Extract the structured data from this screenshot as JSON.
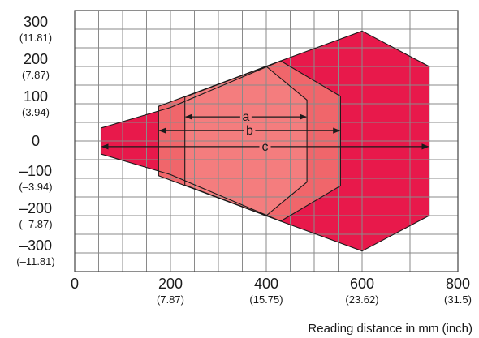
{
  "chart_data": {
    "type": "area",
    "title": "",
    "xlabel": "Reading distance in mm (inch)",
    "ylabel": "",
    "xlim": [
      0,
      800
    ],
    "ylim": [
      -350,
      350
    ],
    "grid": true,
    "colors": {
      "outer": "#e8194b",
      "middle": "#f0666b",
      "inner": "#f47d7e",
      "grid": "#8a8a8a",
      "line": "#1a1a1a"
    },
    "x_ticks": [
      {
        "value": 0,
        "label": "0",
        "sub": ""
      },
      {
        "value": 200,
        "label": "200",
        "sub": "(7.87)"
      },
      {
        "value": 400,
        "label": "400",
        "sub": "(15.75)"
      },
      {
        "value": 600,
        "label": "600",
        "sub": "(23.62)"
      },
      {
        "value": 800,
        "label": "800",
        "sub": "(31.5)"
      }
    ],
    "y_ticks": [
      {
        "value": 300,
        "label": "300",
        "sub": "(11.81)"
      },
      {
        "value": 200,
        "label": "200",
        "sub": "(7.87)"
      },
      {
        "value": 100,
        "label": "100",
        "sub": "(3.94)"
      },
      {
        "value": 0,
        "label": "0",
        "sub": ""
      },
      {
        "value": -100,
        "label": "–100",
        "sub": "(–3.94)"
      },
      {
        "value": -200,
        "label": "–200",
        "sub": "(–7.87)"
      },
      {
        "value": -300,
        "label": "–300",
        "sub": "(–11.81)"
      }
    ],
    "series": [
      {
        "name": "c",
        "fill": "outer",
        "points": [
          [
            55,
            35
          ],
          [
            200,
            90
          ],
          [
            430,
            215
          ],
          [
            600,
            295
          ],
          [
            740,
            200
          ],
          [
            740,
            -200
          ],
          [
            600,
            -295
          ],
          [
            430,
            -215
          ],
          [
            200,
            -90
          ],
          [
            55,
            -35
          ]
        ]
      },
      {
        "name": "b",
        "fill": "middle",
        "points": [
          [
            175,
            93
          ],
          [
            430,
            215
          ],
          [
            555,
            120
          ],
          [
            555,
            -120
          ],
          [
            430,
            -215
          ],
          [
            175,
            -93
          ]
        ]
      },
      {
        "name": "a",
        "fill": "inner",
        "points": [
          [
            230,
            118
          ],
          [
            400,
            200
          ],
          [
            485,
            110
          ],
          [
            485,
            -110
          ],
          [
            400,
            -200
          ],
          [
            230,
            -118
          ]
        ]
      }
    ],
    "ranges": [
      {
        "label": "a",
        "from": 230,
        "to": 485,
        "y": 65
      },
      {
        "label": "b",
        "from": 175,
        "to": 555,
        "y": 28
      },
      {
        "label": "c",
        "from": 55,
        "to": 740,
        "y": -15
      }
    ]
  }
}
